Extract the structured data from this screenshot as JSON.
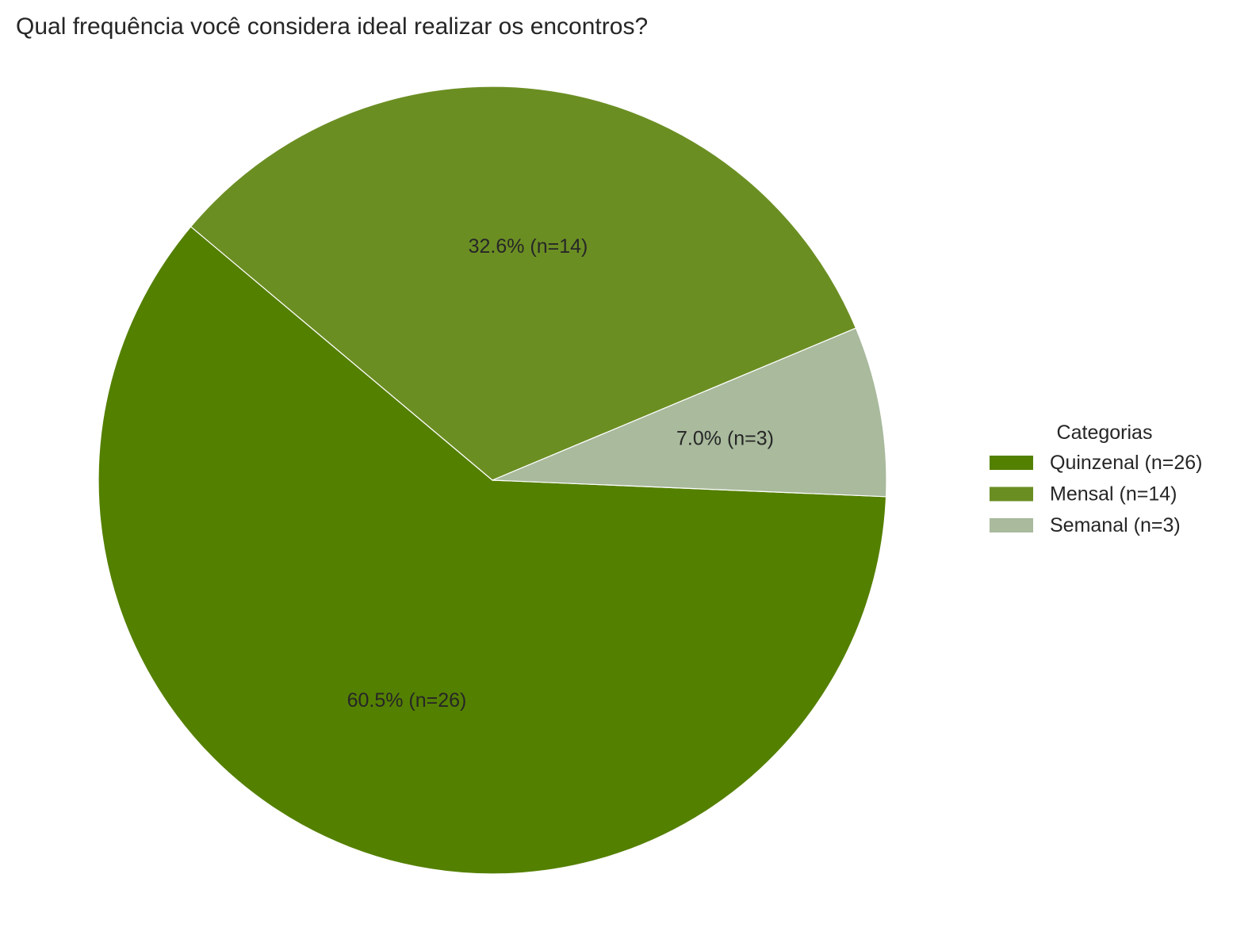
{
  "chart_data": {
    "type": "pie",
    "title": "Qual frequência você considera ideal realizar os encontros?",
    "legend_title": "Categorias",
    "legend_position": "right",
    "slices": [
      {
        "category": "Quinzenal",
        "count": 26,
        "percent": 60.5,
        "label": "60.5% (n=26)",
        "legend_label": "Quinzenal (n=26)",
        "color": "#548000"
      },
      {
        "category": "Mensal",
        "count": 14,
        "percent": 32.6,
        "label": "32.6% (n=14)",
        "legend_label": "Mensal (n=14)",
        "color": "#6b8e23"
      },
      {
        "category": "Semanal",
        "count": 3,
        "percent": 7.0,
        "label": "7.0% (n=3)",
        "legend_label": "Semanal (n=3)",
        "color": "#a9ba9d"
      }
    ]
  }
}
